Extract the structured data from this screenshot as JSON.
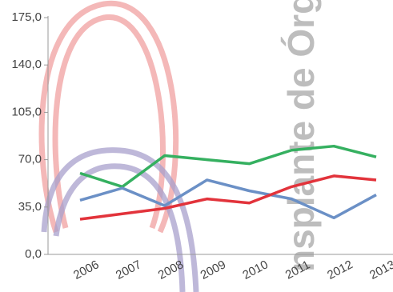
{
  "chart_data": {
    "type": "line",
    "categories": [
      "2006",
      "2007",
      "2008",
      "2009",
      "2010",
      "2011",
      "2012",
      "2013"
    ],
    "series": [
      {
        "color": "#35b060",
        "values": [
          60,
          50,
          73,
          70,
          67,
          77,
          80,
          72
        ]
      },
      {
        "color": "#6b90c6",
        "values": [
          40,
          49,
          36,
          55,
          47,
          41,
          27,
          44
        ]
      },
      {
        "color": "#e2333b",
        "values": [
          26,
          30,
          34,
          41,
          38,
          50,
          58,
          55
        ]
      }
    ],
    "ylim": [
      0,
      175
    ],
    "yticks": [
      {
        "value": 0,
        "label": "0,0"
      },
      {
        "value": 35,
        "label": "35,0"
      },
      {
        "value": 70,
        "label": "70,0"
      },
      {
        "value": 105,
        "label": "105,0"
      },
      {
        "value": 140,
        "label": "140,0"
      },
      {
        "value": 175,
        "label": "175,0"
      }
    ],
    "annotation": "nsplante de Órgão"
  }
}
